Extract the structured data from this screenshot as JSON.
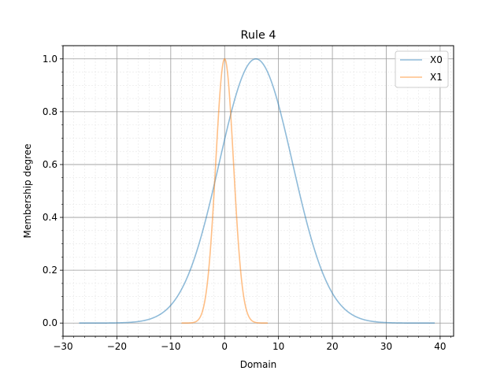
{
  "chart_data": {
    "type": "line",
    "title": "Rule 4",
    "xlabel": "Domain",
    "ylabel": "Membership degree",
    "xlim": [
      -30,
      42.5
    ],
    "ylim": [
      -0.05,
      1.05
    ],
    "xticks": [
      -30,
      -20,
      -10,
      0,
      10,
      20,
      30,
      40
    ],
    "xtick_labels": [
      "−30",
      "−20",
      "−10",
      "0",
      "10",
      "20",
      "30",
      "40"
    ],
    "yticks": [
      0.0,
      0.2,
      0.4,
      0.6,
      0.8,
      1.0
    ],
    "ytick_labels": [
      "0.0",
      "0.2",
      "0.4",
      "0.6",
      "0.8",
      "1.0"
    ],
    "grid": "major and minor",
    "legend_position": "top-right",
    "series": [
      {
        "name": "X0",
        "color": "#1f77b4",
        "function": "gaussian",
        "mean": 5.8,
        "sigma": 6.8,
        "x_range": [
          -27,
          39
        ]
      },
      {
        "name": "X1",
        "color": "#ff7f0e",
        "function": "gaussian",
        "mean": 0.0,
        "sigma": 1.65,
        "x_range": [
          -8,
          8
        ]
      }
    ]
  }
}
